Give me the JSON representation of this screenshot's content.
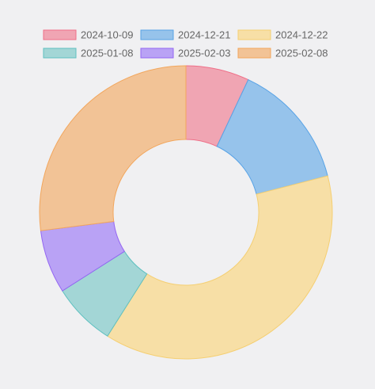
{
  "chart_data": {
    "type": "doughnut",
    "categories": [
      "2024-10-09",
      "2024-12-21",
      "2024-12-22",
      "2025-01-08",
      "2025-02-03",
      "2025-02-08"
    ],
    "values": [
      7,
      14,
      38,
      7,
      7,
      27
    ],
    "colors": {
      "fill": [
        "#f0a5b3",
        "#96c3eb",
        "#f7dfa6",
        "#a3d6d6",
        "#b9a2f5",
        "#f2c396"
      ],
      "stroke": [
        "#ef6f88",
        "#58a3e6",
        "#f5cf72",
        "#5fc0c0",
        "#9466f2",
        "#f2a65c"
      ]
    },
    "legend_position": "top",
    "start_angle": "top",
    "direction": "clockwise"
  }
}
